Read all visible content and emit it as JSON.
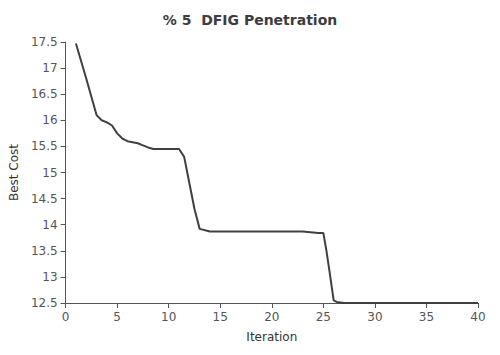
{
  "chart_data": {
    "type": "line",
    "title": "% 5  DFIG Penetration",
    "xlabel": "Iteration",
    "ylabel": "Best Cost",
    "x": [
      1,
      2,
      3,
      3.5,
      4,
      4.5,
      5,
      5.5,
      6,
      6.5,
      7,
      7.5,
      8,
      8.5,
      9,
      9.5,
      10,
      10.5,
      11,
      11.5,
      12,
      12.5,
      13,
      14,
      15,
      16,
      17,
      18,
      19,
      20,
      21,
      22,
      23,
      23.5,
      24,
      24.5,
      25,
      25.3,
      25.6,
      26,
      26.3,
      27,
      40
    ],
    "values": [
      17.47,
      16.8,
      16.1,
      16.0,
      15.96,
      15.9,
      15.75,
      15.65,
      15.6,
      15.58,
      15.56,
      15.52,
      15.48,
      15.45,
      15.45,
      15.45,
      15.45,
      15.45,
      15.45,
      15.3,
      14.8,
      14.3,
      13.92,
      13.87,
      13.87,
      13.87,
      13.87,
      13.87,
      13.87,
      13.87,
      13.87,
      13.87,
      13.87,
      13.86,
      13.85,
      13.84,
      13.84,
      13.5,
      13.1,
      12.55,
      12.52,
      12.5,
      12.5
    ],
    "color": "#404040",
    "xlim": [
      0,
      40
    ],
    "xticks": [
      0,
      5,
      10,
      15,
      20,
      25,
      30,
      35,
      40
    ],
    "ylim": [
      12.5,
      17.5
    ],
    "yticks": [
      12.5,
      13,
      13.5,
      14,
      14.5,
      15,
      15.5,
      16,
      16.5,
      17,
      17.5
    ],
    "grid": false
  }
}
